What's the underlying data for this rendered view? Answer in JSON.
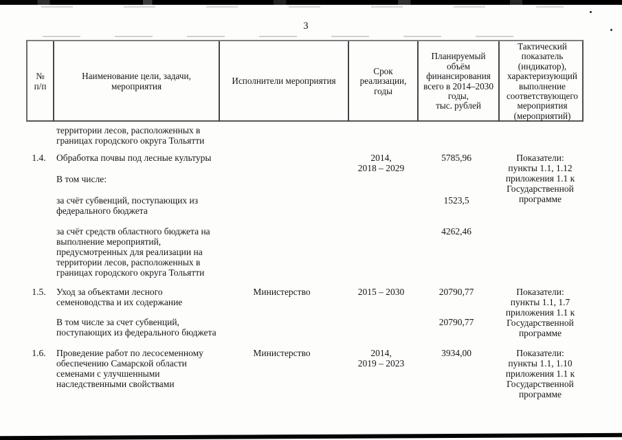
{
  "page": {
    "number": "3"
  },
  "table": {
    "headers": [
      "№\nп/п",
      "Наименование цели, задачи,\nмероприятия",
      "Исполнители мероприятия",
      "Срок\nреализации,\nгоды",
      "Планируемый\nобъём\nфинансирования\nвсего в 2014–2030\nгоды,\nтыс. рублей",
      "Тактический\nпоказатель\n(индикатор),\nхарактеризующий\nвыполнение\nсоответствующего\nмероприятия\n(мероприятий)"
    ],
    "rows": [
      {
        "num": "",
        "executor": "",
        "term": "",
        "amount": "",
        "indicator": "",
        "name": "территории лесов, расположенных в\nграницах городского округа Тольятти"
      },
      {
        "num": "1.4.",
        "name": "Обработка почвы под лесные культуры",
        "executor": "",
        "term": "2014,\n2018 – 2029",
        "amount": "5785,96",
        "indicator": "Показатели:\nпункты 1.1, 1.12\nприложения 1.1 к\nГосударственной\nпрограмме"
      },
      {
        "num": "",
        "executor": "",
        "term": "",
        "amount": "",
        "indicator": "",
        "name": "В том числе:"
      },
      {
        "num": "",
        "executor": "",
        "term": "",
        "indicator": "",
        "name": "за счёт субвенций, поступающих из\nфедерального бюджета",
        "amount": "1523,5"
      },
      {
        "num": "",
        "executor": "",
        "term": "",
        "indicator": "",
        "name": "за счёт средств областного бюджета на\nвыполнение мероприятий,\nпредусмотренных для реализации на\nтерритории лесов, расположенных в\nграницах городского округа Тольятти",
        "amount": "4262,46"
      },
      {
        "num": "1.5.",
        "name": "Уход за объектами лесного\nсеменоводства и их содержание",
        "executor": "Министерство",
        "term": "2015 – 2030",
        "amount": "20790,77",
        "indicator": "Показатели:\nпункты 1.1, 1.7\nприложения 1.1 к\nГосударственной\nпрограмме"
      },
      {
        "num": "",
        "executor": "",
        "term": "",
        "indicator": "",
        "name": "В том числе за счет субвенций,\nпоступающих из федерального бюджета",
        "amount": "20790,77"
      },
      {
        "num": "1.6.",
        "name": "Проведение работ по лесосеменному\nобеспечению Самарской области\nсеменами с улучшенными\nнаследственными свойствами",
        "executor": "Министерство",
        "term": "2014,\n2019 – 2023",
        "amount": "3934,00",
        "indicator": "Показатели:\nпункты 1.1, 1.10\nприложения 1.1 к\nГосударственной\nпрограмме"
      }
    ]
  }
}
